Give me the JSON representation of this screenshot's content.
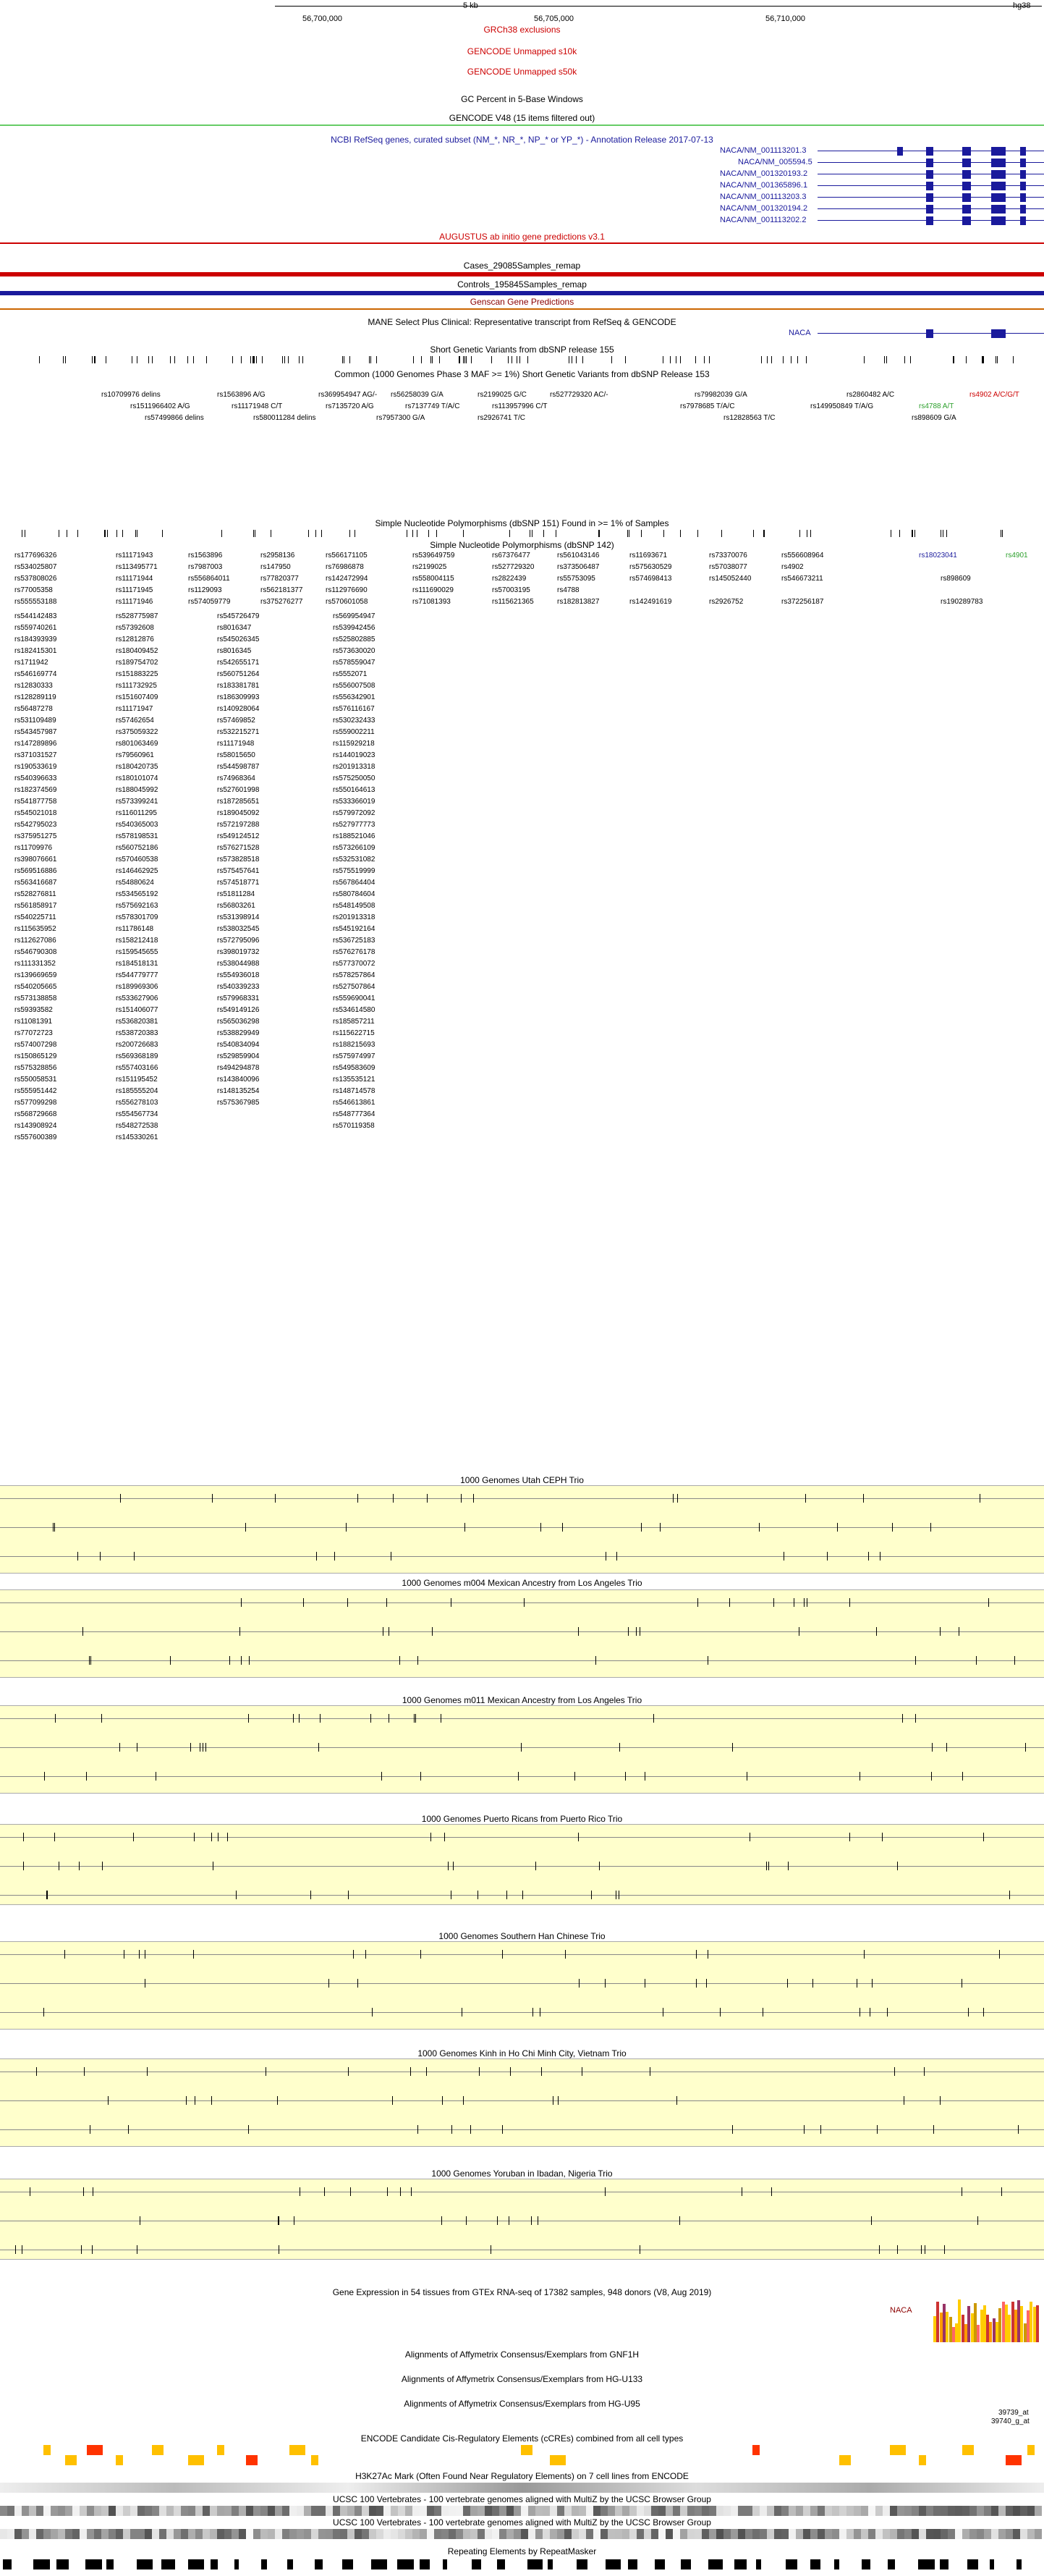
{
  "ruler": {
    "scale_label": "5 kb",
    "assembly": "hg38",
    "positions": [
      "56,700,000",
      "56,705,000",
      "56,710,000"
    ]
  },
  "tracks_top": [
    "GRCh38 exclusions",
    "GENCODE Unmapped s10k",
    "GENCODE Unmapped s50k",
    "GC Percent in 5-Base Windows",
    "GENCODE V48 (15 items filtered out)",
    "NCBI RefSeq genes, curated subset (NM_*, NR_*, NP_* or YP_*) - Annotation Release 2017-07-13"
  ],
  "refseq_transcripts": [
    "NACA/NM_001113201.3",
    "NACA/NM_005594.5",
    "NACA/NM_001320193.2",
    "NACA/NM_001365896.1",
    "NACA/NM_001113203.3",
    "NACA/NM_001320194.2",
    "NACA/NM_001113202.2"
  ],
  "tracks_mid": [
    "AUGUSTUS ab initio gene predictions v3.1",
    "Cases_29085Samples_remap",
    "Controls_195845Samples_remap",
    "Genscan Gene Predictions",
    "MANE Select Plus Clinical: Representative transcript from RefSeq & GENCODE",
    "Short Genetic Variants from dbSNP release 155",
    "Common (1000 Genomes Phase 3 MAF >= 1%) Short Genetic Variants from dbSNP Release 153",
    "Simple Nucleotide Polymorphisms (dbSNP 151) Found in >= 1% of Samples",
    "Simple Nucleotide Polymorphisms (dbSNP 142)"
  ],
  "mane_label": "NACA",
  "common_snps_row1": [
    "rs10709976 delins",
    "rs1563896 A/G",
    "rs369954947 AG/-",
    "rs56258039 G/A",
    "rs2199025 G/C",
    "rs527729320 AC/-",
    "rs79982039 G/A",
    "rs2860482 A/C",
    "rs4902 A/C/G/T"
  ],
  "common_snps_row2": [
    "rs1511966402 A/G",
    "rs11171948 C/T",
    "rs7135720 A/G",
    "rs7137749 T/A/C",
    "rs113957996 C/T",
    "rs7978685 T/A/C",
    "rs149950849 T/A/G",
    "rs4788 A/T"
  ],
  "common_snps_row3": [
    "rs57499866 delins",
    "rs580011284 delins",
    "rs7957300 G/A",
    "rs2926741 T/C",
    "rs12828563 T/C",
    "rs898609 G/A"
  ],
  "snp151_sample": [
    "rs177696326",
    "rs11171943",
    "rs1563896",
    "rs2958136",
    "rs566171105",
    "rs539649759",
    "rs67376477",
    "rs561043146",
    "rs11693671",
    "rs73370076",
    "rs556608964",
    "rs18023041",
    "rs4901"
  ],
  "snp142_rows": [
    [
      "rs534025807",
      "rs113495771",
      "rs7987003",
      "rs147950",
      "rs76986878",
      "rs2199025",
      "rs527729320",
      "rs373506487",
      "rs575630529",
      "rs57038077",
      "rs4902"
    ],
    [
      "rs537808026",
      "rs11171944",
      "rs556864011",
      "rs77820377",
      "rs142472994",
      "rs558004115",
      "rs2822439",
      "rs55753095",
      "rs574698413",
      "rs145052440",
      "rs546673211",
      "rs898609"
    ],
    [
      "rs77005358",
      "rs11171945",
      "rs1129093",
      "rs562181377",
      "rs112976690",
      "rs111690029",
      "rs57003195",
      "rs4788"
    ],
    [
      "rs555553188",
      "rs11171946",
      "rs574059779",
      "rs375276277",
      "rs570601058",
      "rs71081393",
      "rs115621365",
      "rs182813827",
      "rs142491619",
      "rs2926752",
      "rs372256187",
      "rs190289783"
    ]
  ],
  "snp142_columns": [
    [
      "rs544142483",
      "rs559740261",
      "rs184393939",
      "rs182415301",
      "rs1711942",
      "rs546169774",
      "rs12830333",
      "rs128289119",
      "rs56487278",
      "rs531109489",
      "rs543457987",
      "rs147289896",
      "rs371031527",
      "rs190533619",
      "rs540396633",
      "rs182374569",
      "rs541877758",
      "rs545021018",
      "rs542795023",
      "rs375951275",
      "rs11709976",
      "rs398076661",
      "rs569516886",
      "rs563416687",
      "rs528276811",
      "rs561858917",
      "rs540225711",
      "rs115635952",
      "rs112627086",
      "rs546790308",
      "rs111331352",
      "rs139669659",
      "rs540205665",
      "rs573138858",
      "rs59393582",
      "rs11081391",
      "rs77072723",
      "rs574007298",
      "rs150865129",
      "rs575328856",
      "rs550058531",
      "rs555951442",
      "rs577099298",
      "rs568729668",
      "rs143908924",
      "rs557600389"
    ],
    [
      "rs528775987",
      "rs57392608",
      "rs12812876",
      "rs180409452",
      "rs189754702",
      "rs151883225",
      "rs111732925",
      "rs151607409",
      "rs11171947",
      "rs57462654",
      "rs375059322",
      "rs801063469",
      "rs79560961",
      "rs180420735",
      "rs180101074",
      "rs188045992",
      "rs573399241",
      "rs116011295",
      "rs540365003",
      "rs578198531",
      "rs560752186",
      "rs570460538",
      "rs146462925",
      "rs54880624",
      "rs534565192",
      "rs575692163",
      "rs578301709",
      "rs11786148",
      "rs158212418",
      "rs159545655",
      "rs184518131",
      "rs544779777",
      "rs189969306",
      "rs533627906",
      "rs151406077",
      "rs536820381",
      "rs538720383",
      "rs200726683",
      "rs569368189",
      "rs557403166",
      "rs151195452",
      "rs185555204",
      "rs556278103",
      "rs554567734",
      "rs548272538",
      "rs145330261"
    ],
    [
      "rs545726479",
      "rs8016347",
      "rs545026345",
      "rs8016345",
      "rs542655171",
      "rs560751264",
      "rs183381781",
      "rs186309993",
      "rs140928064",
      "rs57469852",
      "rs532215271",
      "rs11171948",
      "rs58015650",
      "rs544598787",
      "rs74968364",
      "rs527601998",
      "rs187285651",
      "rs189045092",
      "rs572197288",
      "rs549124512",
      "rs576271528",
      "rs573828518",
      "rs575457641",
      "rs574518771",
      "rs51811284",
      "rs56803261",
      "rs531398914",
      "rs538032545",
      "rs572795096",
      "rs398019732",
      "rs538044988",
      "rs554936018",
      "rs540339233",
      "rs579968331",
      "rs549149126",
      "rs565036298",
      "rs538829949",
      "rs540834094",
      "rs529859904",
      "rs494294878",
      "rs143840096",
      "rs148135254",
      "rs575367985"
    ],
    [
      "rs569954947",
      "rs539942456",
      "rs525802885",
      "rs573630020",
      "rs578559047",
      "rs5552071",
      "rs556007508",
      "rs556342901",
      "rs576116167",
      "rs530232433",
      "rs559002211",
      "rs115929218",
      "rs144019023",
      "rs201913318",
      "rs575250050",
      "rs550164613",
      "rs533366019",
      "rs579972092",
      "rs527977773",
      "rs188521046",
      "rs573266109",
      "rs532531082",
      "rs575519999",
      "rs567864404",
      "rs580784604",
      "rs548149508",
      "rs201913318",
      "rs545192164",
      "rs536725183",
      "rs576276178",
      "rs577370072",
      "rs578257864",
      "rs527507864",
      "rs559690041",
      "rs534614580",
      "rs185857211",
      "rs115622715",
      "rs188215693",
      "rs575974997",
      "rs549583609",
      "rs135535121",
      "rs148714578",
      "rs546613861",
      "rs548777364",
      "rs570119358"
    ]
  ],
  "trio_tracks": [
    "1000 Genomes Utah CEPH Trio",
    "1000 Genomes m004 Mexican Ancestry from Los Angeles Trio",
    "1000 Genomes m011 Mexican Ancestry from Los Angeles Trio",
    "1000 Genomes Puerto Ricans from Puerto Rico Trio",
    "1000 Genomes Southern Han Chinese Trio",
    "1000 Genomes Kinh in Ho Chi Minh City, Vietnam Trio",
    "1000 Genomes Yoruban in Ibadan, Nigeria Trio"
  ],
  "tracks_bottom": [
    "Gene Expression in 54 tissues from GTEx RNA-seq of 17382 samples, 948 donors (V8, Aug 2019)",
    "Alignments of Affymetrix Consensus/Exemplars from GNF1H",
    "Alignments of Affymetrix Consensus/Exemplars from HG-U133",
    "Alignments of Affymetrix Consensus/Exemplars from HG-U95",
    "ENCODE Candidate Cis-Regulatory Elements (cCREs) combined from all cell types",
    "H3K27Ac Mark (Often Found Near Regulatory Elements) on 7 cell lines from ENCODE",
    "UCSC 100 Vertebrates - 100 vertebrate genomes aligned with MultiZ by the UCSC Browser Group",
    "UCSC 100 Vertebrates - 100 vertebrate genomes aligned with MultiZ by the UCSC Browser Group",
    "Repeating Elements by RepeatMasker"
  ],
  "gtex_label": "NACA",
  "u95_labels": [
    "39739_at",
    "39740_g_at"
  ],
  "colors": {
    "refseq_blue": "#1a1a9c",
    "red": "#cc0000",
    "trio_bg": "#ffffcc",
    "ccre_yellow": "#ffc000",
    "green": "#2ca02c"
  }
}
